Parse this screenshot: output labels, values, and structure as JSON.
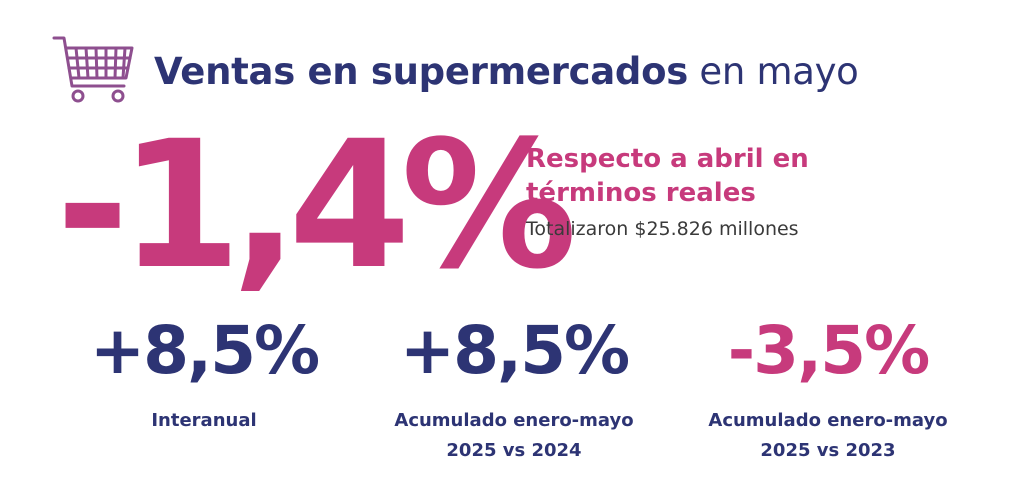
{
  "header": {
    "title_bold": "Ventas en supermercados",
    "title_light": " en mayo",
    "icon": "shopping-cart-icon",
    "icon_color": "#c73a7c"
  },
  "headline": {
    "value": "-1,4%",
    "color": "#c73a7c",
    "subtitle_line1": "Respecto a abril en",
    "subtitle_line2": "términos reales",
    "total": "Totalizaron $25.826 millones"
  },
  "stats": [
    {
      "value": "+8,5%",
      "color": "#2d3474",
      "label_line1": "Interanual",
      "label_line2": ""
    },
    {
      "value": "+8,5%",
      "color": "#2d3474",
      "label_line1": "Acumulado enero-mayo",
      "label_line2": "2025 vs 2024"
    },
    {
      "value": "-3,5%",
      "color": "#c73a7c",
      "label_line1": "Acumulado enero-mayo",
      "label_line2": "2025 vs 2023"
    }
  ],
  "colors": {
    "navy": "#2d3474",
    "pink": "#c73a7c"
  }
}
